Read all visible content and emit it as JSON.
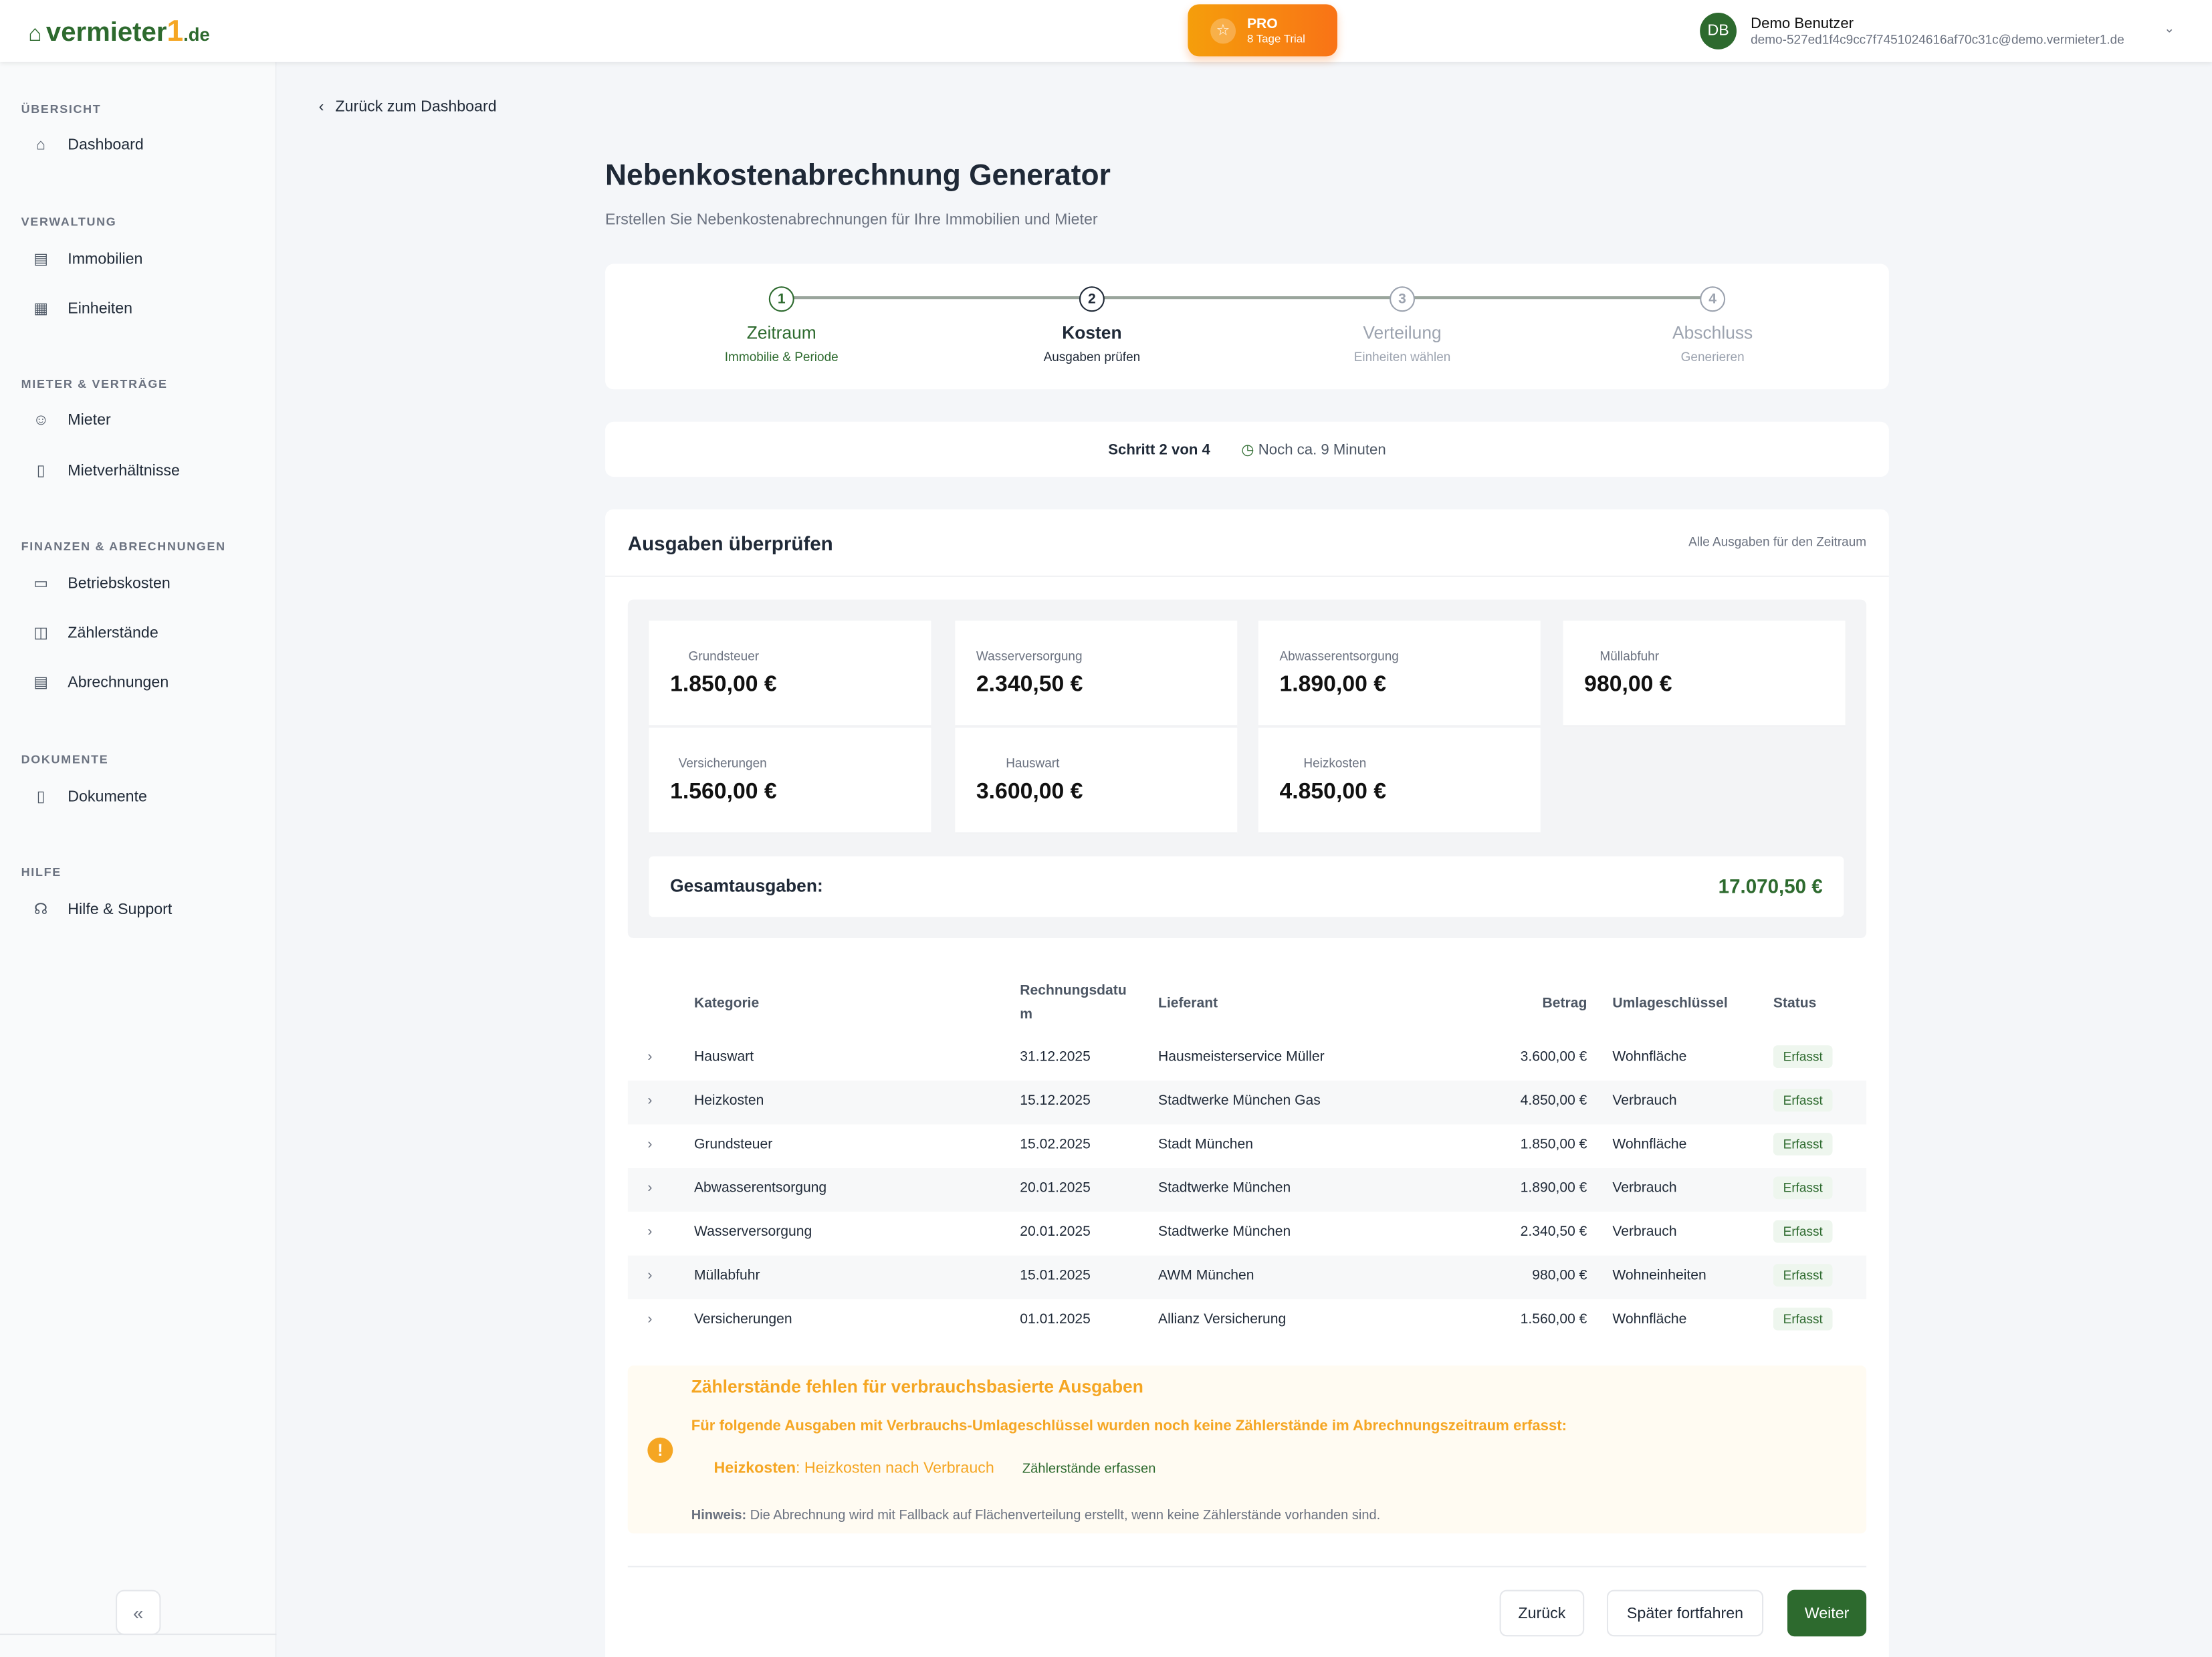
{
  "header": {
    "logo": {
      "text": "vermieter",
      "one": "1",
      "tld": ".de"
    },
    "pro": {
      "label": "PRO",
      "trial": "8 Tage Trial"
    },
    "user": {
      "initials": "DB",
      "name": "Demo Benutzer",
      "email": "demo-527ed1f4c9cc7f7451024616af70c31c@demo.vermieter1.de"
    }
  },
  "sidebar": {
    "sections": [
      {
        "title": "ÜBERSICHT",
        "items": [
          {
            "label": "Dashboard",
            "icon": "home-icon"
          }
        ]
      },
      {
        "title": "VERWALTUNG",
        "items": [
          {
            "label": "Immobilien",
            "icon": "building-icon"
          },
          {
            "label": "Einheiten",
            "icon": "grid-icon"
          }
        ]
      },
      {
        "title": "MIETER & VERTRÄGE",
        "items": [
          {
            "label": "Mieter",
            "icon": "user-icon"
          },
          {
            "label": "Mietverhältnisse",
            "icon": "document-icon"
          }
        ]
      },
      {
        "title": "FINANZEN & ABRECHNUNGEN",
        "items": [
          {
            "label": "Betriebskosten",
            "icon": "credit-card-icon"
          },
          {
            "label": "Zählerstände",
            "icon": "meter-icon"
          },
          {
            "label": "Abrechnungen",
            "icon": "receipt-icon"
          }
        ]
      },
      {
        "title": "DOKUMENTE",
        "items": [
          {
            "label": "Dokumente",
            "icon": "file-icon"
          }
        ]
      },
      {
        "title": "HILFE",
        "items": [
          {
            "label": "Hilfe & Support",
            "icon": "headset-icon"
          }
        ]
      }
    ],
    "collapse_icon": "double-chevron-left-icon"
  },
  "page": {
    "back": "Zurück zum Dashboard",
    "title": "Nebenkostenabrechnung Generator",
    "subtitle": "Erstellen Sie Nebenkostenabrechnungen für Ihre Immobilien und Mieter"
  },
  "stepper": [
    {
      "num": "1",
      "label": "Zeitraum",
      "sub": "Immobilie & Periode",
      "state": "done"
    },
    {
      "num": "2",
      "label": "Kosten",
      "sub": "Ausgaben prüfen",
      "state": "active"
    },
    {
      "num": "3",
      "label": "Verteilung",
      "sub": "Einheiten wählen",
      "state": "pending"
    },
    {
      "num": "4",
      "label": "Abschluss",
      "sub": "Generieren",
      "state": "pending"
    }
  ],
  "progress": {
    "step": "Schritt 2 von 4",
    "time": "Noch ca. 9 Minuten"
  },
  "expenses": {
    "title": "Ausgaben überprüfen",
    "hint": "Alle Ausgaben für den Zeitraum",
    "cards": [
      {
        "label": "Grundsteuer",
        "value": "1.850,00 €"
      },
      {
        "label": "Wasserversorgung",
        "value": "2.340,50 €"
      },
      {
        "label": "Abwasserentsorgung",
        "value": "1.890,00 €"
      },
      {
        "label": "Müllabfuhr",
        "value": "980,00 €"
      },
      {
        "label": "Versicherungen",
        "value": "1.560,00 €"
      },
      {
        "label": "Hauswart",
        "value": "3.600,00 €"
      },
      {
        "label": "Heizkosten",
        "value": "4.850,00 €"
      }
    ],
    "total_label": "Gesamtausgaben:",
    "total_value": "17.070,50 €"
  },
  "table": {
    "headers": [
      "Kategorie",
      "Rechnungsdatum",
      "Lieferant",
      "Betrag",
      "Umlageschlüssel",
      "Status"
    ],
    "rows": [
      [
        "Hauswart",
        "31.12.2025",
        "Hausmeisterservice Müller",
        "3.600,00 €",
        "Wohnfläche",
        "Erfasst"
      ],
      [
        "Heizkosten",
        "15.12.2025",
        "Stadtwerke München Gas",
        "4.850,00 €",
        "Verbrauch",
        "Erfasst"
      ],
      [
        "Grundsteuer",
        "15.02.2025",
        "Stadt München",
        "1.850,00 €",
        "Wohnfläche",
        "Erfasst"
      ],
      [
        "Abwasserentsorgung",
        "20.01.2025",
        "Stadtwerke München",
        "1.890,00 €",
        "Verbrauch",
        "Erfasst"
      ],
      [
        "Wasserversorgung",
        "20.01.2025",
        "Stadtwerke München",
        "2.340,50 €",
        "Verbrauch",
        "Erfasst"
      ],
      [
        "Müllabfuhr",
        "15.01.2025",
        "AWM München",
        "980,00 €",
        "Wohneinheiten",
        "Erfasst"
      ],
      [
        "Versicherungen",
        "01.01.2025",
        "Allianz Versicherung",
        "1.560,00 €",
        "Wohnfläche",
        "Erfasst"
      ]
    ]
  },
  "alert": {
    "title": "Zählerstände fehlen für verbrauchsbasierte Ausgaben",
    "text": "Für folgende Ausgaben mit Verbrauchs-Umlageschlüssel wurden noch keine Zählerstände im Abrechnungszeitraum erfasst:",
    "item_bold": "Heizkosten",
    "item_text": ": Heizkosten nach Verbrauch",
    "link": "Zählerstände erfassen",
    "note_bold": "Hinweis:",
    "note": " Die Abrechnung wird mit Fallback auf Flächenverteilung erstellt, wenn keine Zählerstände vorhanden sind."
  },
  "buttons": {
    "back": "Zurück",
    "later": "Später fortfahren",
    "next": "Weiter"
  },
  "colors": {
    "primary": "#2d6a2e",
    "accent": "#f5a623",
    "pro": "#f97316"
  }
}
